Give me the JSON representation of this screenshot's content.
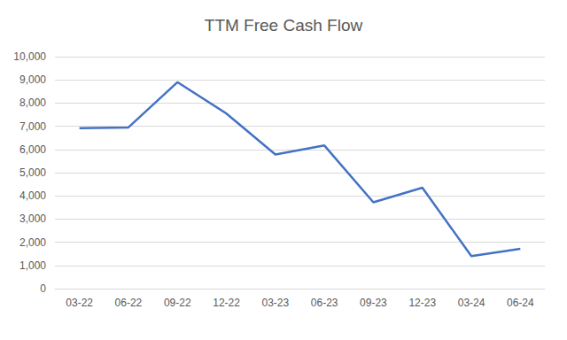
{
  "chart_data": {
    "type": "line",
    "title": "TTM Free Cash Flow",
    "categories": [
      "03-22",
      "06-22",
      "09-22",
      "12-22",
      "03-23",
      "06-23",
      "09-23",
      "12-23",
      "03-24",
      "06-24"
    ],
    "values": [
      6920,
      6950,
      8900,
      7550,
      5780,
      6170,
      3720,
      4350,
      1400,
      1720
    ],
    "color": "#4472c4",
    "ylim": [
      0,
      10000
    ],
    "yticks": [
      0,
      {
        "value": 1000,
        "label": "1,000"
      },
      {
        "value": 2000,
        "label": "2,000"
      },
      {
        "value": 3000,
        "label": "3,000"
      },
      {
        "value": 4000,
        "label": "4,000"
      },
      {
        "value": 5000,
        "label": "5,000"
      },
      {
        "value": 6000,
        "label": "6,000"
      },
      {
        "value": 7000,
        "label": "7,000"
      },
      {
        "value": 8000,
        "label": "8,000"
      },
      {
        "value": 9000,
        "label": "9,000"
      },
      {
        "value": 10000,
        "label": "10,000"
      }
    ],
    "grid": true
  }
}
